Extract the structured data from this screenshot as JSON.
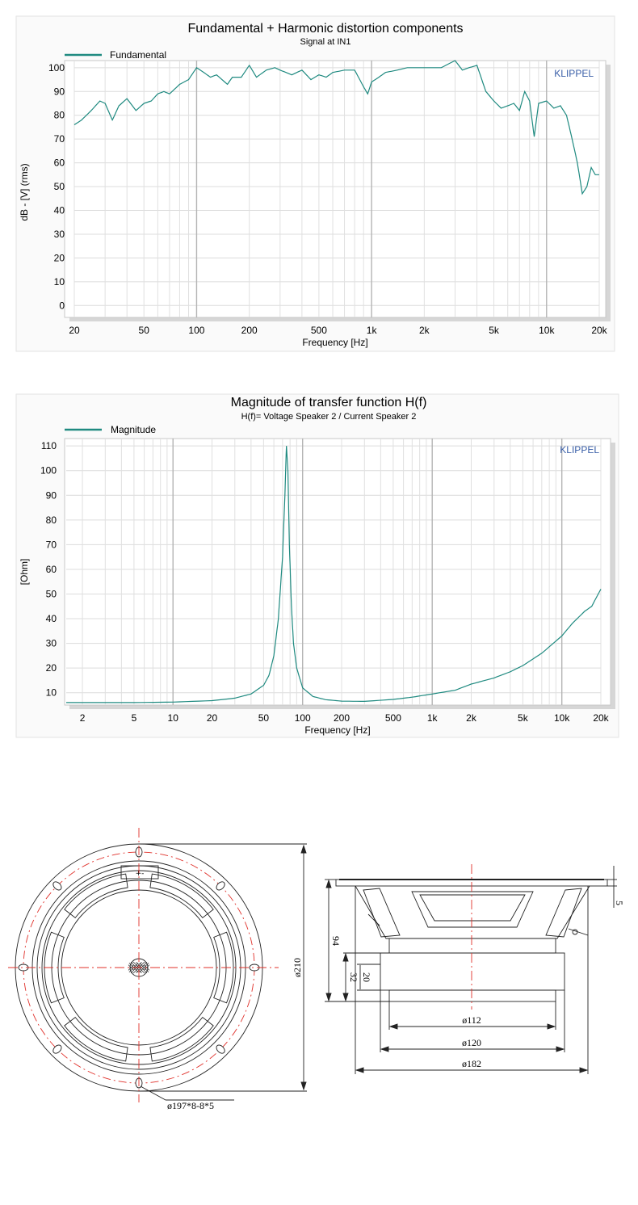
{
  "chart_data": [
    {
      "type": "line",
      "title": "Fundamental + Harmonic distortion components",
      "subtitle": "Signal at IN1",
      "xlabel": "Frequency [Hz]",
      "ylabel": "dB - [V] (rms)",
      "brand": "KLIPPEL",
      "x_scale": "log",
      "xlim": [
        20,
        20000
      ],
      "ylim": [
        -5,
        103
      ],
      "x_ticks": [
        20,
        50,
        100,
        200,
        500,
        1000,
        2000,
        5000,
        10000,
        20000
      ],
      "x_tick_labels": [
        "20",
        "50",
        "100",
        "200",
        "500",
        "1k",
        "2k",
        "5k",
        "10k",
        "20k"
      ],
      "y_ticks": [
        0,
        10,
        20,
        30,
        40,
        50,
        60,
        70,
        80,
        90,
        100
      ],
      "y_tick_labels": [
        "0",
        "10",
        "20",
        "30",
        "40",
        "50",
        "60",
        "70",
        "80",
        "90",
        "100"
      ],
      "grid": true,
      "legend": "top-left",
      "series": [
        {
          "name": "Fundamental",
          "color": "#1f8a80",
          "x": [
            20,
            22,
            25,
            28,
            30,
            33,
            36,
            40,
            45,
            50,
            55,
            60,
            65,
            70,
            80,
            90,
            100,
            110,
            120,
            130,
            150,
            160,
            180,
            200,
            220,
            250,
            280,
            300,
            350,
            400,
            450,
            500,
            550,
            600,
            700,
            800,
            900,
            950,
            1000,
            1100,
            1200,
            1400,
            1600,
            1800,
            2000,
            2500,
            3000,
            3300,
            3600,
            4000,
            4500,
            5000,
            5500,
            6000,
            6500,
            7000,
            7500,
            8000,
            8500,
            9000,
            10000,
            11000,
            12000,
            13000,
            14000,
            15000,
            16000,
            17000,
            18000,
            19000,
            20000
          ],
          "y": [
            76,
            78,
            82,
            86,
            85,
            78,
            84,
            87,
            82,
            85,
            86,
            89,
            90,
            89,
            93,
            95,
            100,
            98,
            96,
            97,
            93,
            96,
            96,
            101,
            96,
            99,
            100,
            99,
            97,
            99,
            95,
            97,
            96,
            98,
            99,
            99,
            92,
            89,
            94,
            96,
            98,
            99,
            100,
            100,
            100,
            100,
            103,
            99,
            100,
            101,
            90,
            86,
            83,
            84,
            85,
            82,
            90,
            86,
            71,
            85,
            86,
            83,
            84,
            80,
            70,
            60,
            47,
            50,
            58,
            55,
            55
          ]
        }
      ]
    },
    {
      "type": "line",
      "title": "Magnitude of transfer function H(f)",
      "subtitle": "H(f)= Voltage Speaker 2 / Current Speaker 2",
      "xlabel": "Frequency [Hz]",
      "ylabel": "[Ohm]",
      "brand": "KLIPPEL",
      "x_scale": "log",
      "xlim": [
        1.5,
        20000
      ],
      "ylim": [
        5,
        113
      ],
      "x_ticks": [
        2,
        5,
        10,
        20,
        50,
        100,
        200,
        500,
        1000,
        2000,
        5000,
        10000,
        20000
      ],
      "x_tick_labels": [
        "2",
        "5",
        "10",
        "20",
        "50",
        "100",
        "200",
        "500",
        "1k",
        "2k",
        "5k",
        "10k",
        "20k"
      ],
      "y_ticks": [
        10,
        20,
        30,
        40,
        50,
        60,
        70,
        80,
        90,
        100,
        110
      ],
      "y_tick_labels": [
        "10",
        "20",
        "30",
        "40",
        "50",
        "60",
        "70",
        "80",
        "90",
        "100",
        "110"
      ],
      "grid": true,
      "legend": "top-left",
      "series": [
        {
          "name": "Magnitude",
          "color": "#1f8a80",
          "x": [
            1.5,
            5,
            10,
            20,
            30,
            40,
            50,
            55,
            60,
            65,
            70,
            73,
            75,
            77,
            79,
            82,
            85,
            90,
            100,
            120,
            150,
            200,
            300,
            500,
            700,
            1000,
            1500,
            2000,
            3000,
            4000,
            5000,
            7000,
            10000,
            12000,
            15000,
            17000,
            20000
          ],
          "y": [
            6,
            6,
            6.2,
            6.8,
            7.8,
            9.5,
            13,
            17,
            25,
            40,
            65,
            90,
            110,
            100,
            70,
            45,
            30,
            20,
            12,
            8.5,
            7.2,
            6.6,
            6.5,
            7.3,
            8.2,
            9.5,
            11,
            13.5,
            16,
            18.5,
            21,
            26,
            33,
            38,
            43,
            45,
            52
          ]
        }
      ]
    }
  ],
  "drawing": {
    "labels": {
      "mount_holes": "ø197*8-8*5",
      "outer_dia": "ø210",
      "dia_112": "ø112",
      "dia_120": "ø120",
      "dia_182": "ø182",
      "depth_94": "94",
      "mag_32": "32",
      "mag_20": "20",
      "flange_5": "5"
    },
    "terminal_signs": "+-"
  }
}
